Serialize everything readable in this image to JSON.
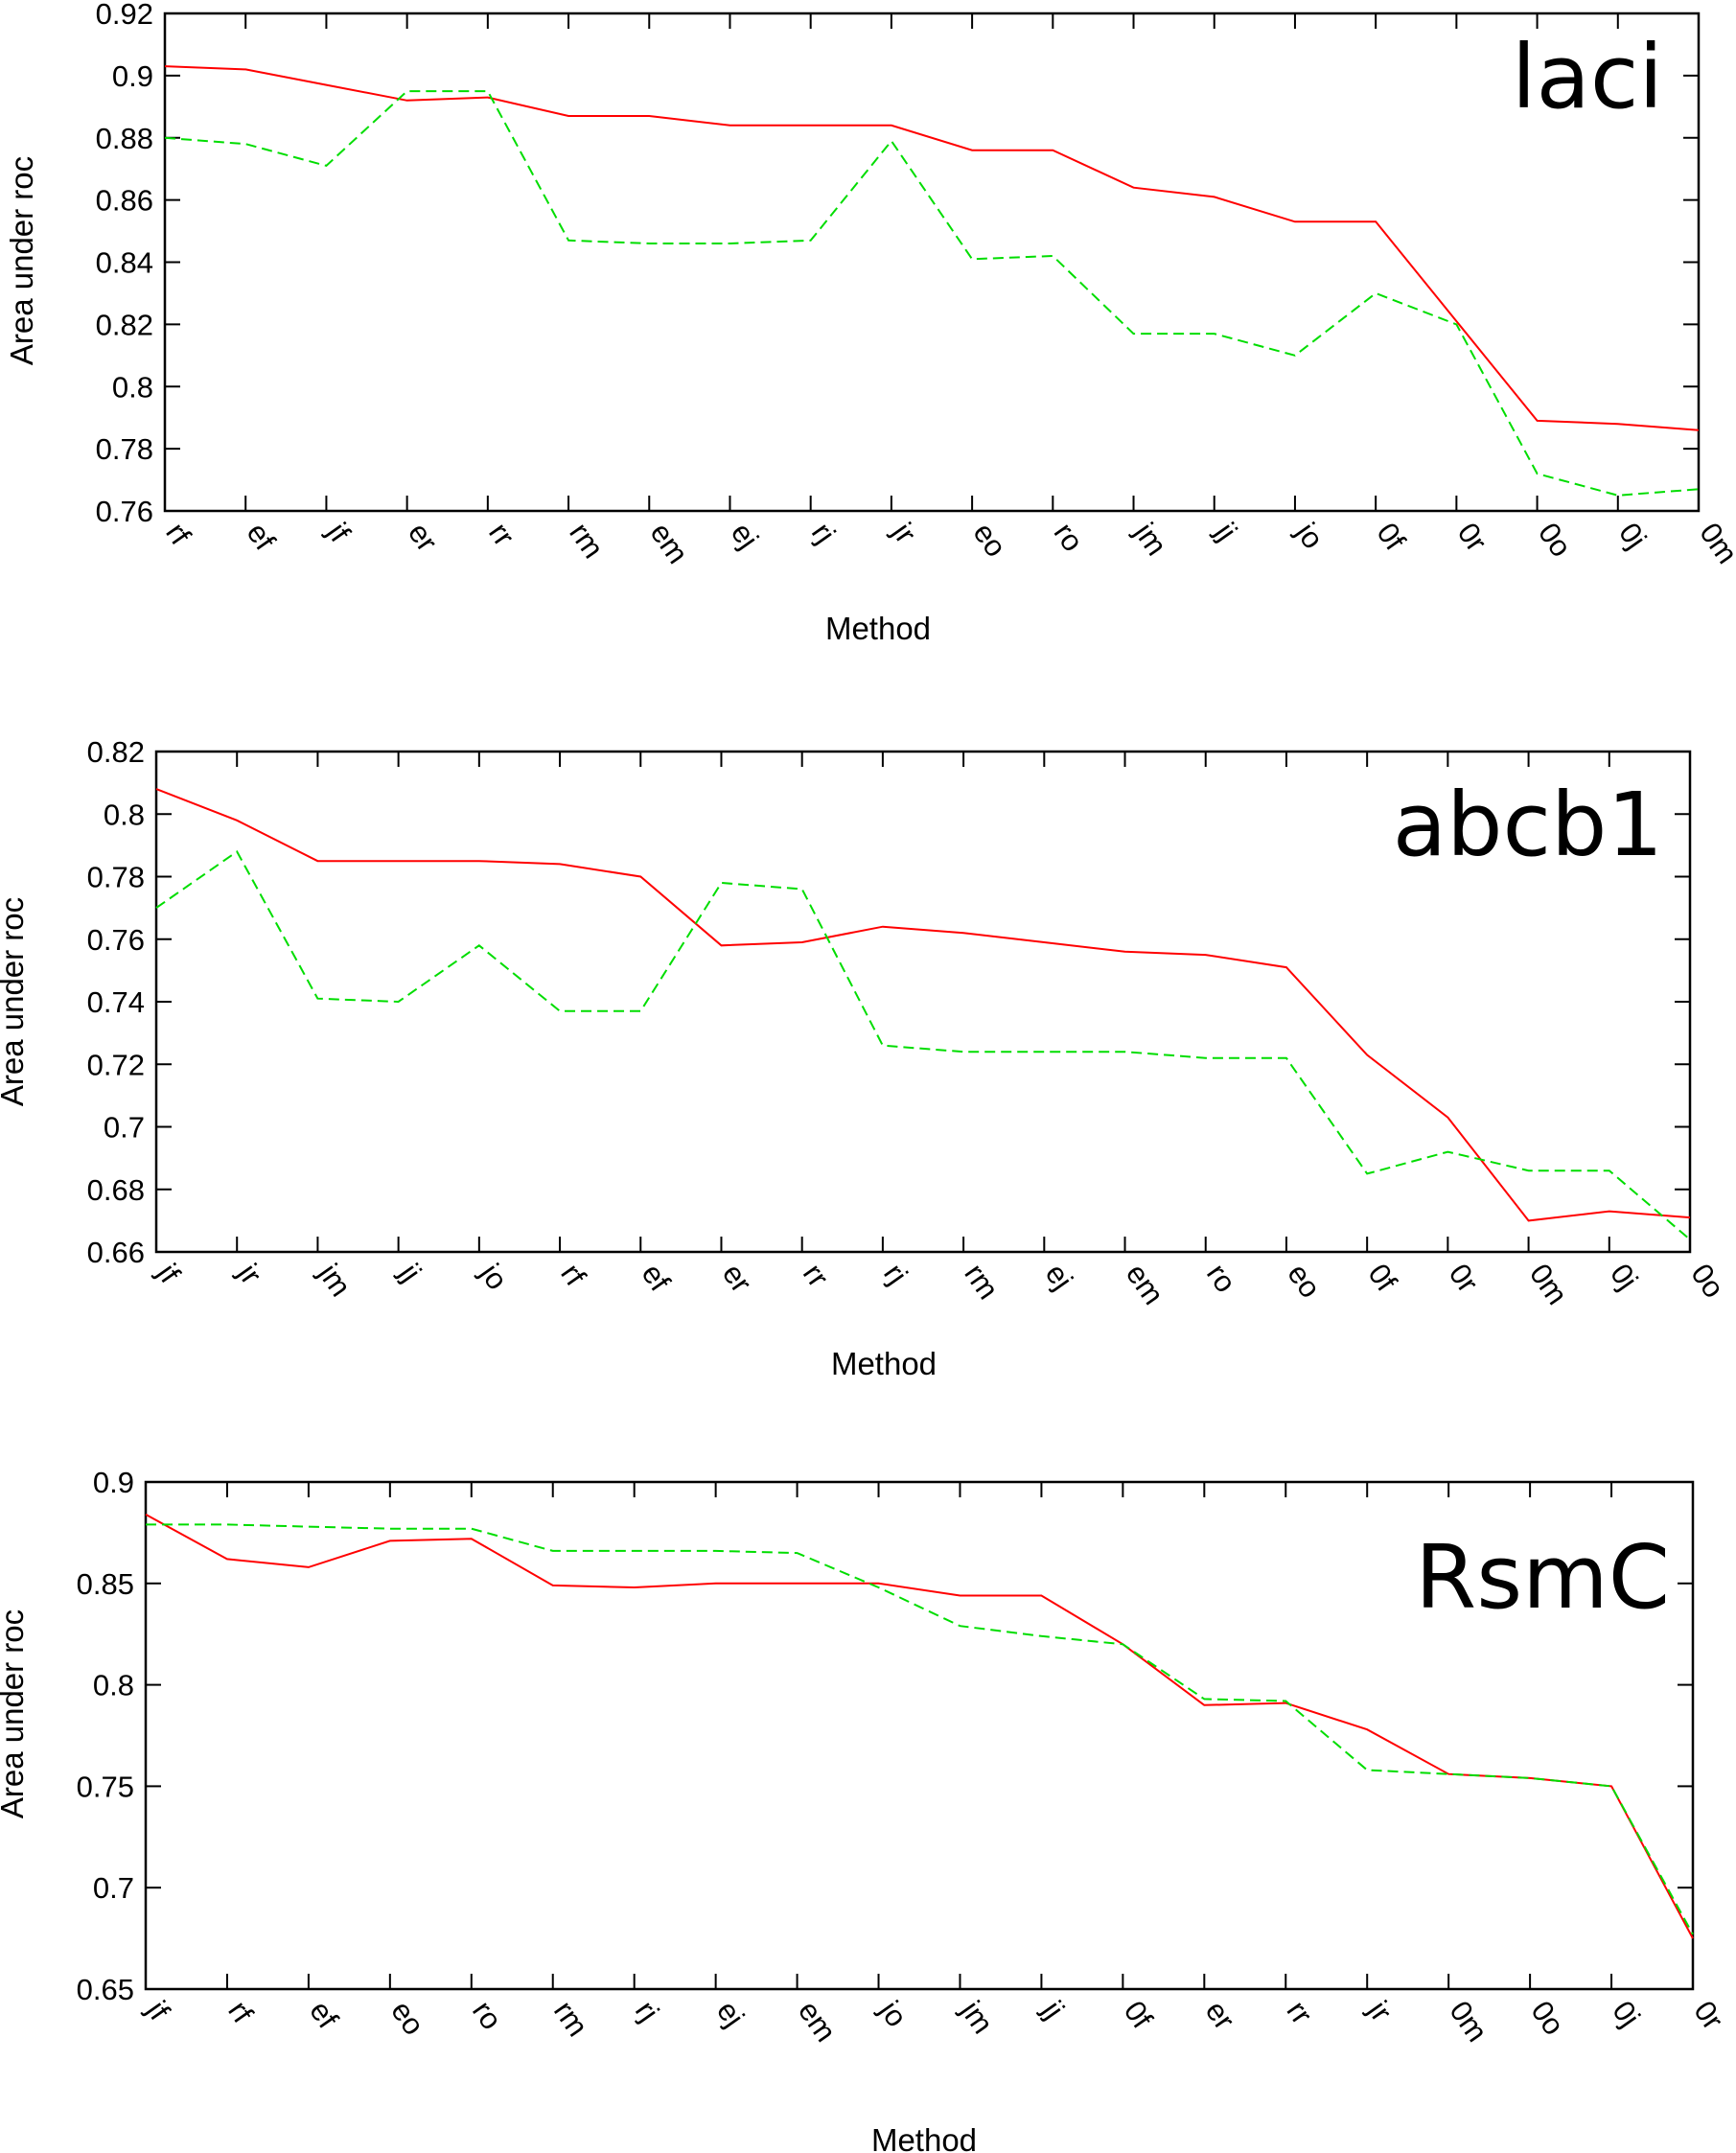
{
  "chart_data": [
    {
      "type": "line",
      "title": "laci",
      "xlabel": "Method",
      "ylabel": "Area under roc",
      "ylim": [
        0.76,
        0.92
      ],
      "yticks": [
        0.76,
        0.78,
        0.8,
        0.82,
        0.84,
        0.86,
        0.88,
        0.9,
        0.92
      ],
      "ytick_labels": [
        "0.76",
        "0.78",
        "0.8",
        "0.82",
        "0.84",
        "0.86",
        "0.88",
        "0.9",
        "0.92"
      ],
      "categories": [
        "rf",
        "ef",
        "jf",
        "er",
        "rr",
        "rm",
        "em",
        "ej",
        "rj",
        "jr",
        "eo",
        "ro",
        "jm",
        "jj",
        "jo",
        "0f",
        "0r",
        "0o",
        "0j",
        "0m"
      ],
      "series": [
        {
          "color": "#ff0000",
          "style": "solid",
          "values": [
            0.903,
            0.902,
            0.897,
            0.892,
            0.893,
            0.887,
            0.887,
            0.884,
            0.884,
            0.884,
            0.876,
            0.876,
            0.864,
            0.861,
            0.853,
            0.853,
            0.821,
            0.789,
            0.788,
            0.786
          ]
        },
        {
          "color": "#00dd00",
          "style": "dashed",
          "values": [
            0.88,
            0.878,
            0.871,
            0.895,
            0.895,
            0.847,
            0.846,
            0.846,
            0.847,
            0.879,
            0.841,
            0.842,
            0.817,
            0.817,
            0.81,
            0.83,
            0.82,
            0.772,
            0.765,
            0.767
          ]
        }
      ]
    },
    {
      "type": "line",
      "title": "abcb1",
      "xlabel": "Method",
      "ylabel": "Area under roc",
      "ylim": [
        0.66,
        0.82
      ],
      "yticks": [
        0.66,
        0.68,
        0.7,
        0.72,
        0.74,
        0.76,
        0.78,
        0.8,
        0.82
      ],
      "ytick_labels": [
        "0.66",
        "0.68",
        "0.7",
        "0.72",
        "0.74",
        "0.76",
        "0.78",
        "0.8",
        "0.82"
      ],
      "categories": [
        "jf",
        "jr",
        "jm",
        "jj",
        "jo",
        "rf",
        "ef",
        "er",
        "rr",
        "rj",
        "rm",
        "ej",
        "em",
        "ro",
        "eo",
        "0f",
        "0r",
        "0m",
        "0j",
        "0o"
      ],
      "series": [
        {
          "color": "#ff0000",
          "style": "solid",
          "values": [
            0.808,
            0.798,
            0.785,
            0.785,
            0.785,
            0.784,
            0.78,
            0.758,
            0.759,
            0.764,
            0.762,
            0.759,
            0.756,
            0.755,
            0.751,
            0.723,
            0.703,
            0.67,
            0.673,
            0.671
          ]
        },
        {
          "color": "#00dd00",
          "style": "dashed",
          "values": [
            0.77,
            0.788,
            0.741,
            0.74,
            0.758,
            0.737,
            0.737,
            0.778,
            0.776,
            0.726,
            0.724,
            0.724,
            0.724,
            0.722,
            0.722,
            0.685,
            0.692,
            0.686,
            0.686,
            0.664
          ]
        }
      ]
    },
    {
      "type": "line",
      "title": "RsmC",
      "xlabel": "Method",
      "ylabel": "Area under roc",
      "ylim": [
        0.65,
        0.9
      ],
      "yticks": [
        0.65,
        0.7,
        0.75,
        0.8,
        0.85,
        0.9
      ],
      "ytick_labels": [
        "0.65",
        "0.7",
        "0.75",
        "0.8",
        "0.85",
        "0.9"
      ],
      "categories": [
        "jf",
        "rf",
        "ef",
        "eo",
        "ro",
        "rm",
        "rj",
        "ej",
        "em",
        "jo",
        "jm",
        "jj",
        "0f",
        "er",
        "rr",
        "jr",
        "0m",
        "0o",
        "0j",
        "0r"
      ],
      "series": [
        {
          "color": "#ff0000",
          "style": "solid",
          "values": [
            0.884,
            0.862,
            0.858,
            0.871,
            0.872,
            0.849,
            0.848,
            0.85,
            0.85,
            0.85,
            0.844,
            0.844,
            0.82,
            0.79,
            0.791,
            0.778,
            0.756,
            0.754,
            0.75,
            0.675
          ]
        },
        {
          "color": "#00dd00",
          "style": "dashed",
          "values": [
            0.879,
            0.879,
            0.878,
            0.877,
            0.877,
            0.866,
            0.866,
            0.866,
            0.865,
            0.848,
            0.829,
            0.824,
            0.82,
            0.793,
            0.792,
            0.758,
            0.756,
            0.754,
            0.75,
            0.677
          ]
        }
      ]
    }
  ]
}
